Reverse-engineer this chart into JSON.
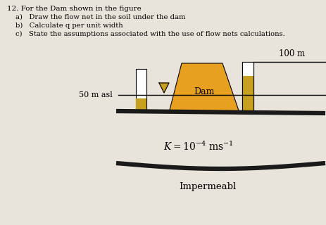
{
  "bg_color": "#e8e4dc",
  "title_text": "12. For the Dam shown in the figure",
  "bullet_a": "a)   Draw the flow net in the soil under the dam",
  "bullet_b": "b)   Calculate q per unit width",
  "bullet_c": "c)   State the assumptions associated with the use of flow nets calculations.",
  "label_50m": "50 m asl",
  "label_100m": "100 m",
  "label_dam": "Dam",
  "label_impermeabl": "Impermeabl",
  "dam_color": "#E8A020",
  "yellow_strip_color": "#C8A020",
  "white_rect_color": "#FFFFFF",
  "ground_color": "#1a1a1a",
  "line_color": "#000000",
  "figw": 4.64,
  "figh": 3.2,
  "dpi": 100
}
